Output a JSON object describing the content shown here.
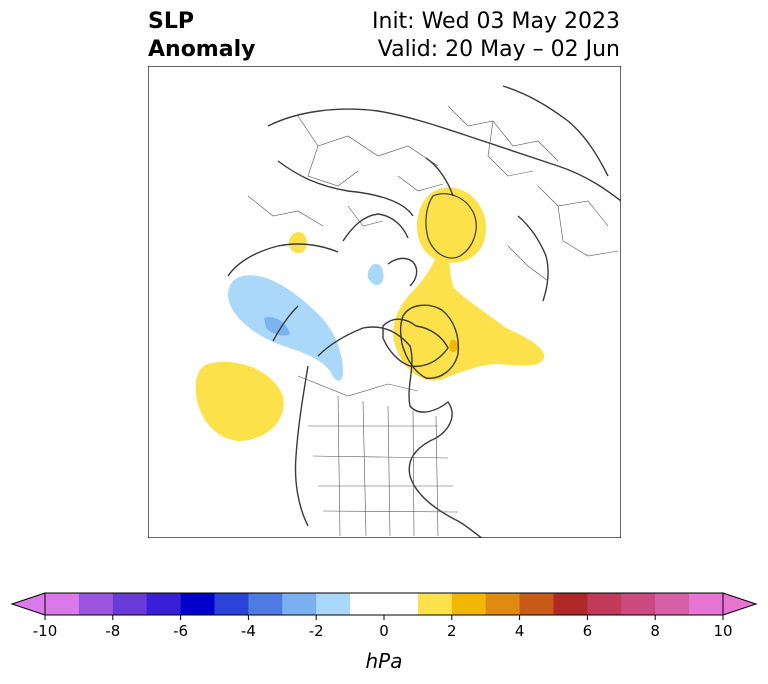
{
  "title": {
    "variable_line1": "SLP",
    "variable_line2": "Anomaly",
    "init": "Init: Wed 03 May 2023",
    "valid": "Valid: 20 May – 02 Jun"
  },
  "map": {
    "projection": "north-polar-stereographic",
    "region": "Northern Hemisphere / North America",
    "features": [
      "coastlines",
      "country-borders",
      "state-borders"
    ],
    "anomaly_regions": [
      {
        "name": "greenland-positive",
        "sign": "positive",
        "range_hpa": "1-2",
        "color": "#fde14a"
      },
      {
        "name": "greenland-core",
        "sign": "positive",
        "range_hpa": "2-3",
        "color": "#f2b705"
      },
      {
        "name": "scandinavia-positive",
        "sign": "positive",
        "range_hpa": "1-2",
        "color": "#fde14a"
      },
      {
        "name": "north-pacific-positive",
        "sign": "positive",
        "range_hpa": "1-2",
        "color": "#fde14a"
      },
      {
        "name": "siberia-small-positive",
        "sign": "positive",
        "range_hpa": "1-2",
        "color": "#fde14a"
      },
      {
        "name": "alaska-negative",
        "sign": "negative",
        "range_hpa": "-1 to -2",
        "color": "#a9d8f8"
      },
      {
        "name": "alaska-core-negative",
        "sign": "negative",
        "range_hpa": "-2 to -3",
        "color": "#7ab4f2"
      },
      {
        "name": "arctic-small-negative",
        "sign": "negative",
        "range_hpa": "-1 to -2",
        "color": "#a9d8f8"
      }
    ]
  },
  "colorbar": {
    "unit": "hPa",
    "ticks": [
      "-10",
      "-8",
      "-6",
      "-4",
      "-2",
      "0",
      "2",
      "4",
      "6",
      "8",
      "10"
    ],
    "extend": "both",
    "colors": [
      "#d97ae8",
      "#9b55e0",
      "#6a3ad8",
      "#3a1fd6",
      "#0000cc",
      "#2a44d8",
      "#4f7ae2",
      "#7ab0f0",
      "#a9d8f8",
      "#ffffff",
      "#ffffff",
      "#fde14a",
      "#f2b705",
      "#e08a10",
      "#c85a18",
      "#b02828",
      "#c23a5a",
      "#cc4a80",
      "#d860a8",
      "#e874d4"
    ],
    "low_extend_color": "#d97ae8",
    "high_extend_color": "#e874d4"
  }
}
